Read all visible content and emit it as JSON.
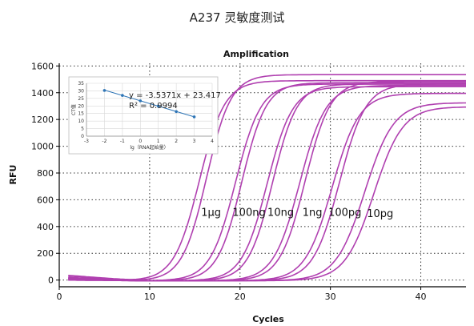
{
  "page_title": "A237 灵敏度测试",
  "chart_data": {
    "type": "line",
    "title": "Amplification",
    "xlabel": "Cycles",
    "ylabel": "RFU",
    "xlim": [
      0,
      45
    ],
    "ylim": [
      -50,
      1620
    ],
    "x_ticks": [
      0,
      10,
      20,
      30,
      40
    ],
    "y_ticks": [
      0,
      200,
      400,
      600,
      800,
      1000,
      1200,
      1400,
      1600
    ],
    "grid": "dotted",
    "line_color": "#b040b0",
    "series": [
      {
        "ct": 15.5,
        "plateau": 1495,
        "slope": 1.4,
        "start": 15
      },
      {
        "ct": 16.3,
        "plateau": 1540,
        "slope": 1.35,
        "start": 40
      },
      {
        "ct": 19.5,
        "plateau": 1470,
        "slope": 1.4,
        "start": 20
      },
      {
        "ct": 20.2,
        "plateau": 1480,
        "slope": 1.35,
        "start": 35
      },
      {
        "ct": 23.0,
        "plateau": 1450,
        "slope": 1.4,
        "start": 10
      },
      {
        "ct": 23.6,
        "plateau": 1470,
        "slope": 1.35,
        "start": 25
      },
      {
        "ct": 26.6,
        "plateau": 1460,
        "slope": 1.45,
        "start": 15
      },
      {
        "ct": 27.2,
        "plateau": 1490,
        "slope": 1.4,
        "start": 5
      },
      {
        "ct": 30.2,
        "plateau": 1400,
        "slope": 1.5,
        "start": 20
      },
      {
        "ct": 31.0,
        "plateau": 1470,
        "slope": 1.45,
        "start": 10
      },
      {
        "ct": 33.8,
        "plateau": 1330,
        "slope": 1.6,
        "start": 20
      },
      {
        "ct": 34.8,
        "plateau": 1300,
        "slope": 1.6,
        "start": 5
      }
    ],
    "concentration_labels": [
      {
        "text": "1μg",
        "cycle": 16.8,
        "rfu": 480
      },
      {
        "text": "100ng",
        "cycle": 21.0,
        "rfu": 480
      },
      {
        "text": "10ng",
        "cycle": 24.5,
        "rfu": 480
      },
      {
        "text": "1ng",
        "cycle": 28.0,
        "rfu": 480
      },
      {
        "text": "100pg",
        "cycle": 31.6,
        "rfu": 480
      },
      {
        "text": "10pg",
        "cycle": 35.5,
        "rfu": 470
      }
    ],
    "inset": {
      "type": "scatter",
      "xlabel": "lg（RNA起始量）",
      "ylabel": "CT值",
      "xlim": [
        -3,
        4
      ],
      "ylim": [
        0,
        35
      ],
      "x_ticks": [
        -3,
        -2,
        -1,
        0,
        1,
        2,
        3,
        4
      ],
      "y_ticks": [
        0,
        5,
        10,
        15,
        20,
        25,
        30,
        35
      ],
      "points": [
        {
          "x": -2,
          "y": 30.3
        },
        {
          "x": -1,
          "y": 27.0
        },
        {
          "x": 0,
          "y": 23.4
        },
        {
          "x": 1,
          "y": 19.9
        },
        {
          "x": 2,
          "y": 16.3
        },
        {
          "x": 3,
          "y": 12.8
        }
      ],
      "equation": "y = -3.5371x + 23.417",
      "r_squared": "R² = 0.9994",
      "color": "#2e75b6"
    }
  }
}
